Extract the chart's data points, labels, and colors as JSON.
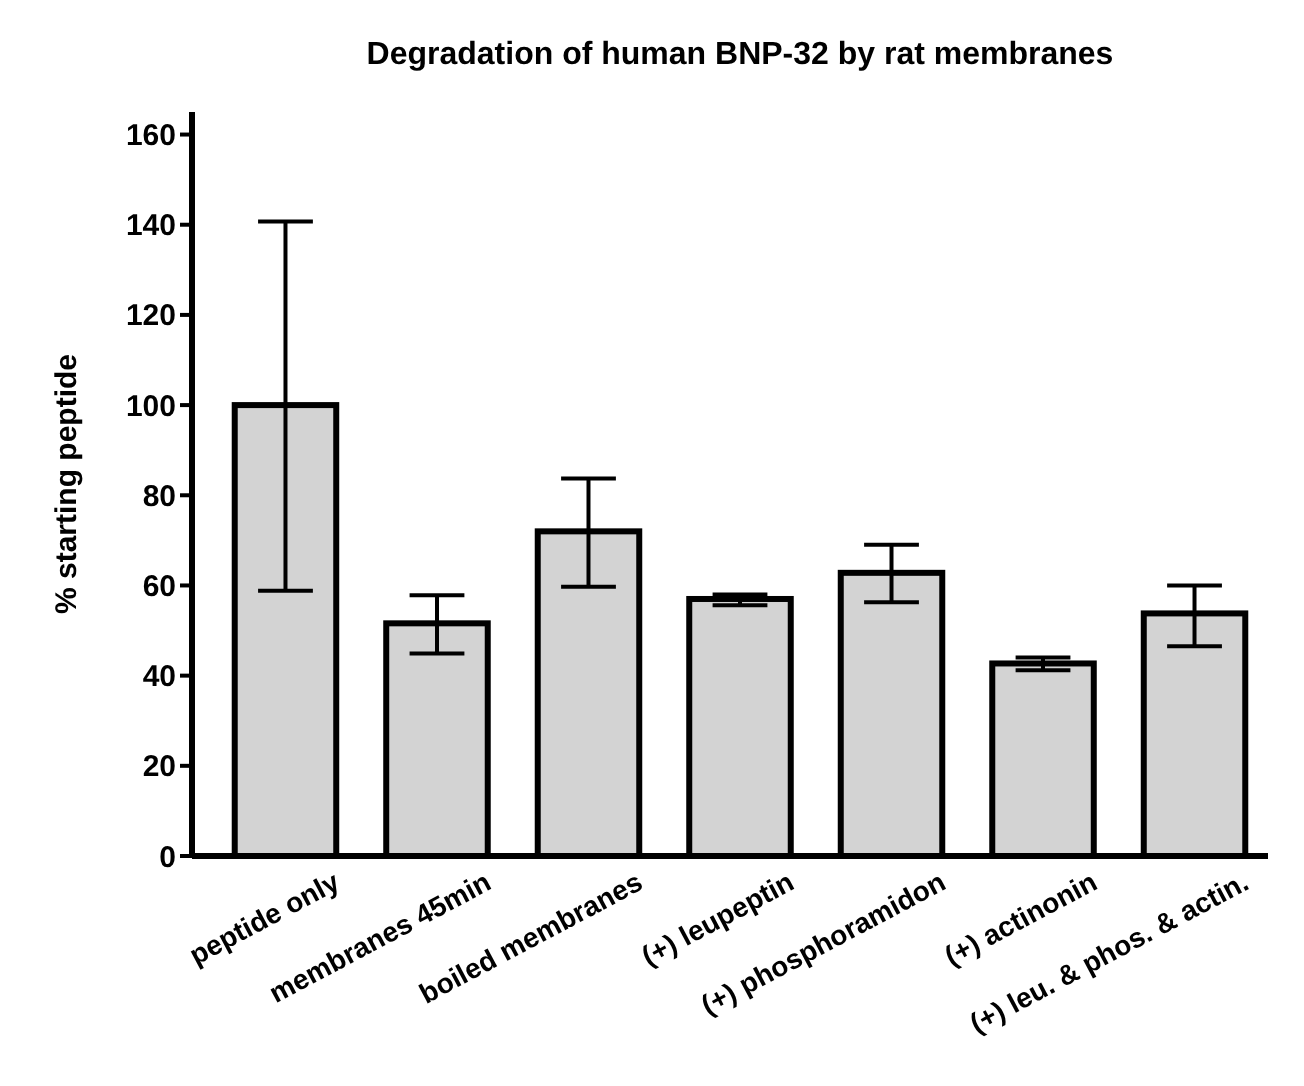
{
  "chart_data": {
    "type": "bar",
    "title": "Degradation of human BNP-32 by rat membranes",
    "ylabel": "% starting peptide",
    "categories": [
      "peptide only",
      "membranes 45min",
      "boiled membranes",
      "(+) leupeptin",
      "(+) phosphoramidon",
      "(+) actinonin",
      "(+) leu. & phos. & actin."
    ],
    "values": [
      100,
      51.6,
      72,
      57,
      62.8,
      42.7,
      53.8
    ],
    "errors": [
      [
        58.8,
        140.7
      ],
      [
        44.9,
        57.8
      ],
      [
        59.7,
        83.7
      ],
      [
        55.6,
        58
      ],
      [
        56.3,
        69
      ],
      [
        41.2,
        44
      ],
      [
        46.5,
        60
      ]
    ],
    "color": "#d3d3d3",
    "ylim": [
      0,
      165
    ],
    "yticks": [
      0,
      20,
      40,
      60,
      80,
      100,
      120,
      140,
      160
    ]
  }
}
